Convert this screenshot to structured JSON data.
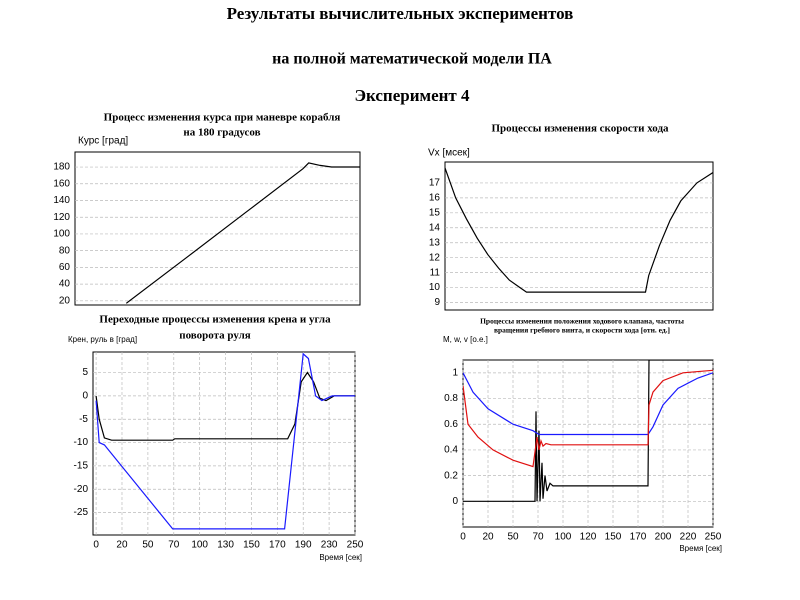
{
  "slide": {
    "title_lines": [
      "Результаты вычислительных экспериментов",
      "на полной математической модели ПА",
      "Эксперимент 4"
    ]
  },
  "chart_data": [
    {
      "type": "line",
      "title": [
        "Процесс изменения курса при маневре корабля",
        "на 180 градусов"
      ],
      "y_label": "Курс [град]",
      "ylim": [
        15,
        198
      ],
      "yticks": [
        20,
        40,
        60,
        80,
        100,
        120,
        140,
        160,
        180
      ],
      "xlim": [
        0,
        250
      ],
      "grid": true,
      "series": [
        {
          "color": "#000000",
          "x": [
            45,
            100,
            150,
            200,
            205,
            215,
            225,
            250
          ],
          "values": [
            17,
            74,
            126,
            178,
            185,
            182,
            180,
            180
          ]
        }
      ]
    },
    {
      "type": "line",
      "title": [
        "Процессы изменения скорости хода"
      ],
      "y_label": "Vx [мсек]",
      "ylim": [
        8.5,
        18.4
      ],
      "yticks": [
        9,
        10,
        11,
        12,
        13,
        14,
        15,
        16,
        17
      ],
      "xlim": [
        0,
        250
      ],
      "grid": true,
      "series": [
        {
          "color": "#000000",
          "x": [
            0,
            10,
            20,
            30,
            40,
            50,
            60,
            70,
            76,
            187,
            190,
            200,
            210,
            220,
            235,
            250
          ],
          "values": [
            18,
            16,
            14.6,
            13.3,
            12.2,
            11.3,
            10.5,
            10,
            9.7,
            9.7,
            10.8,
            12.8,
            14.5,
            15.8,
            17,
            17.7
          ]
        }
      ]
    },
    {
      "type": "line",
      "title": [
        "Переходные процессы изменения крена и угла",
        "поворота руля"
      ],
      "y_label": "Крен, руль в [град]",
      "x_label": "Время [сек]",
      "ylim": [
        -29.8,
        9.4
      ],
      "yticks": [
        5,
        0,
        -5,
        -10,
        -15,
        -20,
        -25
      ],
      "xlim": [
        -3,
        250
      ],
      "xticks": [
        0,
        {
          "value": 25,
          "label": "20"
        },
        50,
        {
          "value": 75,
          "label": "70"
        },
        100,
        {
          "value": 125,
          "label": "130"
        },
        150,
        {
          "value": 175,
          "label": "170"
        },
        {
          "value": 200,
          "label": "190"
        },
        {
          "value": 225,
          "label": "230"
        },
        250
      ],
      "grid": true,
      "series": [
        {
          "color": "#000000",
          "x": [
            0,
            3,
            8,
            15,
            74,
            76,
            185,
            192,
            198,
            204,
            210,
            216,
            222,
            230,
            250
          ],
          "values": [
            0,
            -5,
            -9,
            -9.5,
            -9.5,
            -9.2,
            -9.2,
            -6,
            3,
            5,
            3,
            -0.5,
            -1,
            0,
            0
          ]
        },
        {
          "color": "#1a1aff",
          "x": [
            0,
            3,
            8,
            74,
            182,
            200,
            205,
            212,
            218,
            228,
            250
          ],
          "values": [
            -1,
            -10,
            -10.5,
            -28.5,
            -28.5,
            9,
            8,
            0,
            -1,
            0,
            0
          ]
        }
      ]
    },
    {
      "type": "line",
      "title": [
        "Процессы изменения положения ходового клапана, частоты",
        "вращения гребного винта, и скорости хода [отн. ед.]"
      ],
      "y_label": "M, w, v [о.е.]",
      "x_label": "Время [сек]",
      "ylim": [
        -0.2,
        1.1
      ],
      "yticks": [
        0,
        0.2,
        0.4,
        0.6,
        0.8,
        1
      ],
      "xlim": [
        0,
        250
      ],
      "xticks": [
        0,
        {
          "value": 25,
          "label": "20"
        },
        50,
        {
          "value": 75,
          "label": "70"
        },
        100,
        {
          "value": 125,
          "label": "120"
        },
        150,
        {
          "value": 175,
          "label": "170"
        },
        200,
        {
          "value": 225,
          "label": "220"
        },
        250
      ],
      "grid": true,
      "series": [
        {
          "color": "#000000",
          "x": [
            0,
            72,
            73,
            74,
            76,
            77,
            79,
            80,
            82,
            84,
            87,
            90,
            185,
            186,
            250
          ],
          "values": [
            0,
            0,
            0.7,
            0,
            0.55,
            0,
            0.3,
            0.02,
            0.2,
            0.08,
            0.14,
            0.12,
            0.12,
            1.1,
            1.1
          ]
        },
        {
          "color": "#1a1aff",
          "x": [
            0,
            10,
            25,
            50,
            70,
            76,
            185,
            190,
            200,
            215,
            235,
            250
          ],
          "values": [
            1,
            0.85,
            0.72,
            0.6,
            0.55,
            0.52,
            0.52,
            0.58,
            0.75,
            0.88,
            0.96,
            1.0
          ]
        },
        {
          "color": "#e01010",
          "x": [
            0,
            5,
            15,
            30,
            50,
            70,
            74,
            76,
            78,
            80,
            83,
            88,
            185,
            186,
            190,
            200,
            220,
            250
          ],
          "values": [
            0.9,
            0.6,
            0.5,
            0.4,
            0.32,
            0.27,
            0.5,
            0.4,
            0.47,
            0.43,
            0.45,
            0.44,
            0.44,
            0.75,
            0.85,
            0.94,
            1.0,
            1.02
          ]
        }
      ]
    }
  ]
}
